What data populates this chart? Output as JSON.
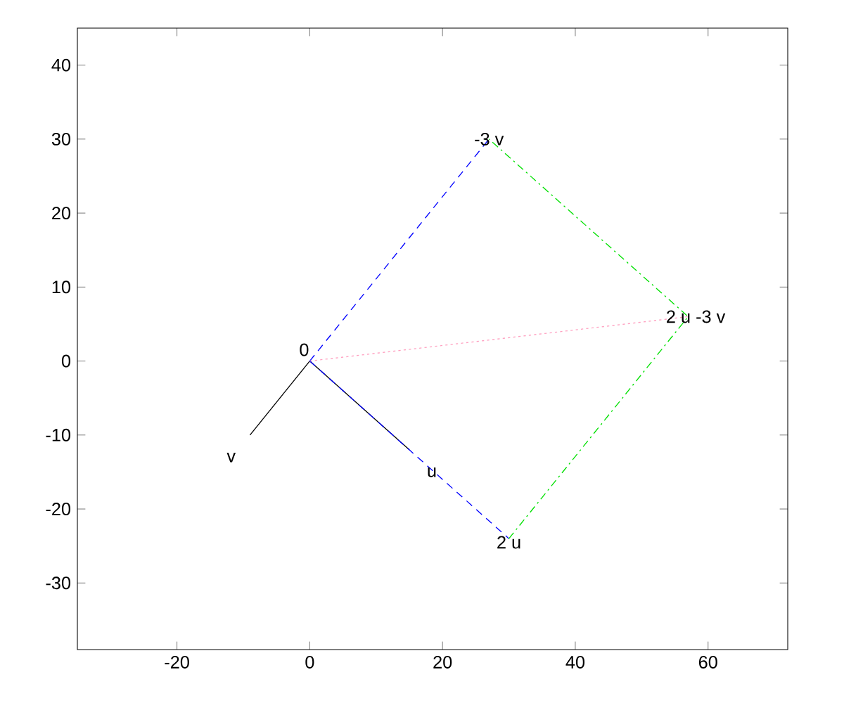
{
  "chart_data": {
    "type": "line",
    "xlim": [
      -35,
      72
    ],
    "ylim": [
      -39,
      45
    ],
    "xticks": [
      -20,
      0,
      20,
      40,
      60
    ],
    "yticks": [
      -30,
      -20,
      -10,
      0,
      10,
      20,
      30,
      40
    ],
    "grid": false,
    "series": [
      {
        "color": "#000000",
        "line_style": "solid",
        "x": [
          0,
          15
        ],
        "values": [
          0,
          -12
        ]
      },
      {
        "color": "#000000",
        "line_style": "solid",
        "x": [
          0,
          -9
        ],
        "values": [
          0,
          -10
        ]
      },
      {
        "color": "#0000ff",
        "line_style": "dashed",
        "x": [
          0,
          30
        ],
        "values": [
          0,
          -24
        ]
      },
      {
        "color": "#0000ff",
        "line_style": "dashed",
        "x": [
          0,
          27
        ],
        "values": [
          0,
          30
        ]
      },
      {
        "color": "#00e000",
        "line_style": "dashdot",
        "x": [
          30,
          57,
          27
        ],
        "values": [
          -24,
          6,
          30
        ]
      },
      {
        "color": "#ffa0c0",
        "line_style": "dotted",
        "x": [
          0,
          57
        ],
        "values": [
          0,
          6
        ]
      }
    ],
    "annotations": [
      {
        "text": "0",
        "x": 0,
        "y": 0
      },
      {
        "text": "u",
        "x": 15,
        "y": -12
      },
      {
        "text": "v",
        "x": -9,
        "y": -10
      },
      {
        "text": "2 u",
        "x": 30,
        "y": -24
      },
      {
        "text": "-3 v",
        "x": 27,
        "y": 30
      },
      {
        "text": "2 u -3 v",
        "x": 57,
        "y": 6
      }
    ]
  }
}
